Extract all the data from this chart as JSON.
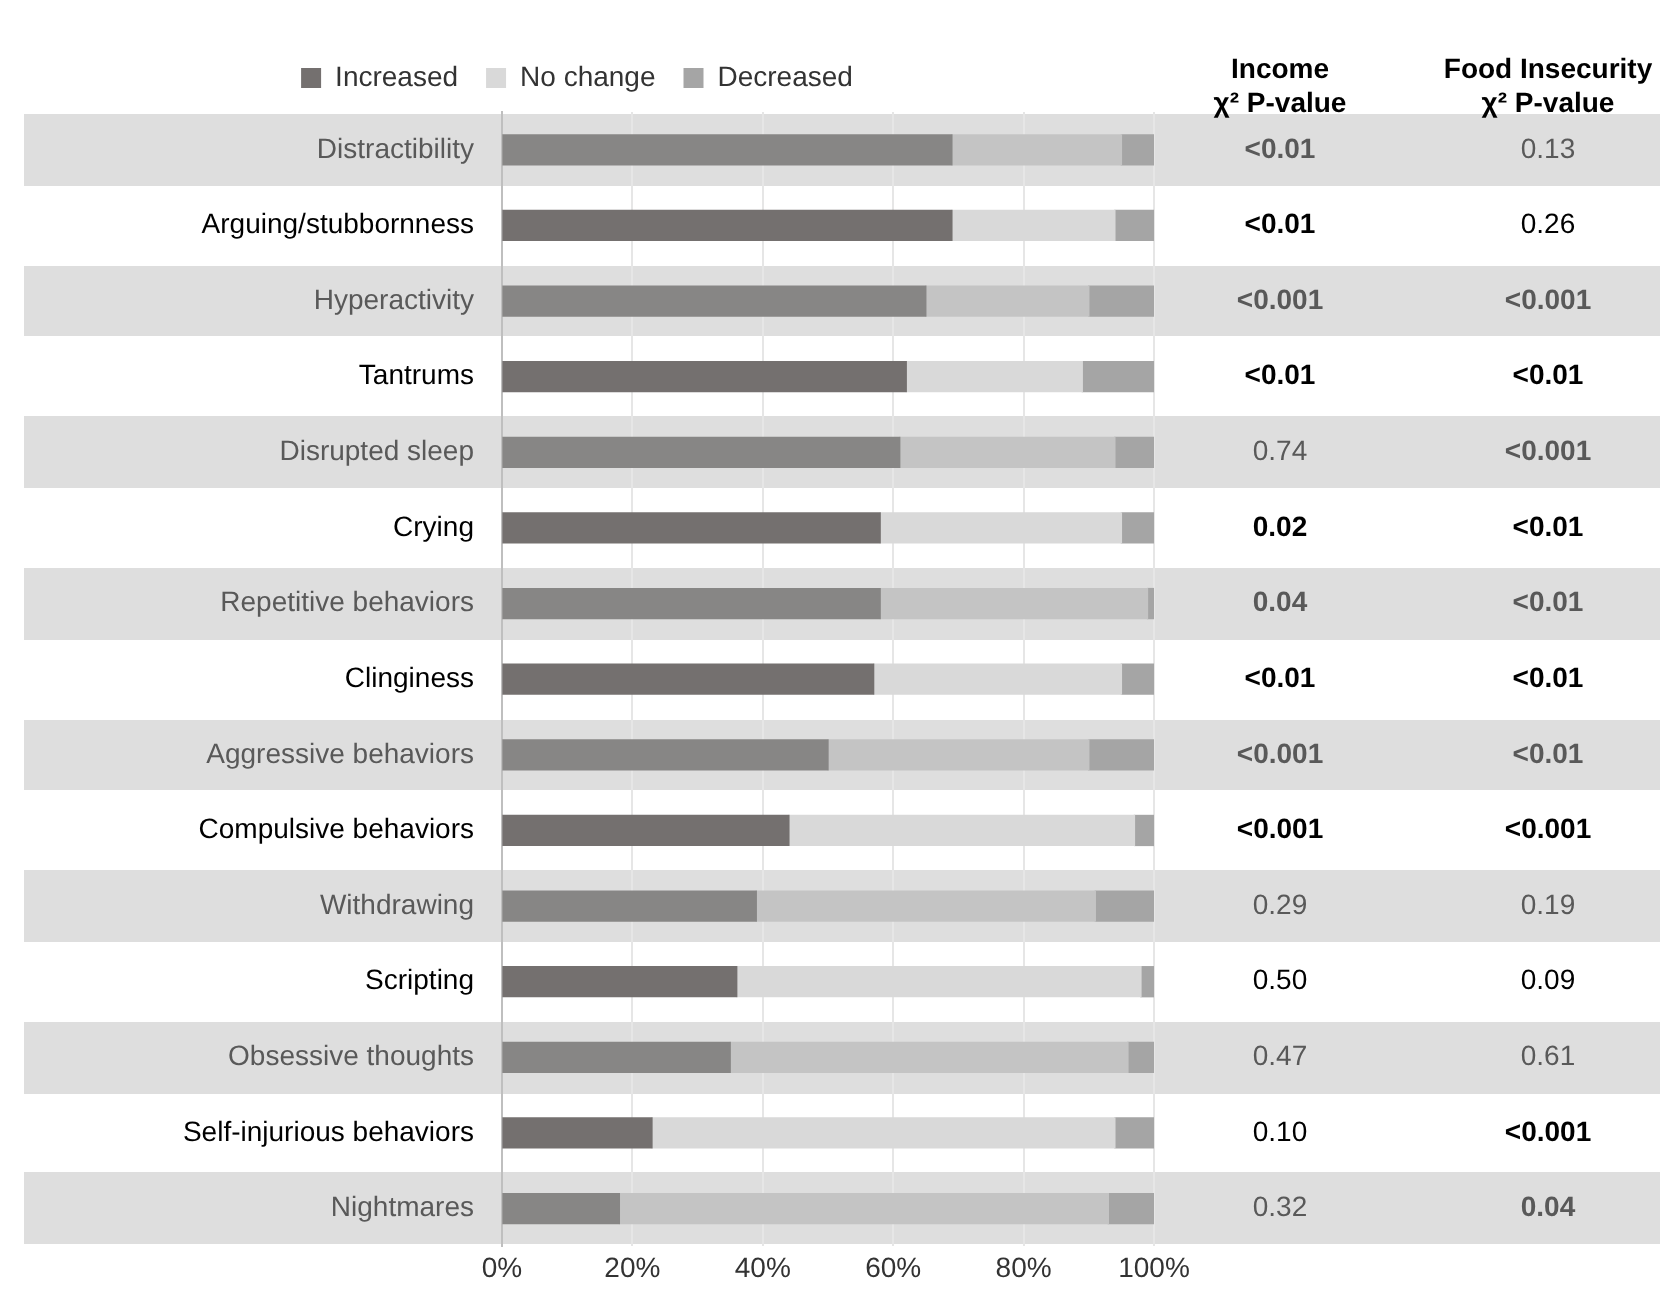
{
  "chart_data": {
    "type": "bar",
    "orientation": "horizontal",
    "stacked": true,
    "categories": [
      "Distractibility",
      "Arguing/stubbornness",
      "Hyperactivity",
      "Tantrums",
      "Disrupted sleep",
      "Crying",
      "Repetitive behaviors",
      "Clinginess",
      "Aggressive behaviors",
      "Compulsive behaviors",
      "Withdrawing",
      "Scripting",
      "Obsessive thoughts",
      "Self-injurious behaviors",
      "Nightmares"
    ],
    "series": [
      {
        "name": "Increased",
        "color": "#74706f",
        "colors": [
          "#878685",
          "#74706f",
          "#878685",
          "#74706f",
          "#878685",
          "#74706f",
          "#878685",
          "#74706f",
          "#878685",
          "#74706f",
          "#878685",
          "#74706f",
          "#878685",
          "#74706f",
          "#878685"
        ],
        "values": [
          69,
          69,
          65,
          62,
          61,
          58,
          58,
          57,
          50,
          44,
          39,
          36,
          35,
          23,
          18
        ]
      },
      {
        "name": "No change",
        "color": "#d9d9d9",
        "colors": [
          "#c4c4c4",
          "#d9d9d9",
          "#c4c4c4",
          "#d9d9d9",
          "#c4c4c4",
          "#d9d9d9",
          "#c4c4c4",
          "#d9d9d9",
          "#c4c4c4",
          "#d9d9d9",
          "#c4c4c4",
          "#d9d9d9",
          "#c4c4c4",
          "#d9d9d9",
          "#c4c4c4"
        ],
        "values": [
          26,
          25,
          25,
          27,
          33,
          37,
          41,
          38,
          40,
          53,
          52,
          62,
          61,
          71,
          75
        ]
      },
      {
        "name": "Decreased",
        "color": "#a5a5a5",
        "values": [
          5,
          6,
          10,
          11,
          6,
          5,
          1,
          5,
          10,
          3,
          9,
          2,
          4,
          6,
          7
        ]
      }
    ],
    "xlim": [
      0,
      100
    ],
    "xticks": [
      {
        "value": 0,
        "label": "0%"
      },
      {
        "value": 20,
        "label": "20%"
      },
      {
        "value": 40,
        "label": "40%"
      },
      {
        "value": 60,
        "label": "60%"
      },
      {
        "value": 80,
        "label": "80%"
      },
      {
        "value": 100,
        "label": "100%"
      }
    ],
    "grid": "x",
    "legend": "top",
    "annotations": [
      "Income\nχ² P-value",
      "Food Insecurity\nχ² P-value",
      "<0.01",
      "0.13",
      "<0.01",
      "0.26",
      "<0.001",
      "<0.001",
      "<0.01",
      "<0.01",
      "0.74",
      "<0.001",
      "0.02",
      "<0.01",
      "0.04",
      "<0.01",
      "<0.01",
      "<0.01",
      "<0.001",
      "<0.01",
      "<0.001",
      "<0.001",
      "0.29",
      "0.19",
      "0.50",
      "0.09",
      "0.47",
      "0.61",
      "0.10",
      "<0.001",
      "0.32",
      "0.04"
    ]
  }
}
